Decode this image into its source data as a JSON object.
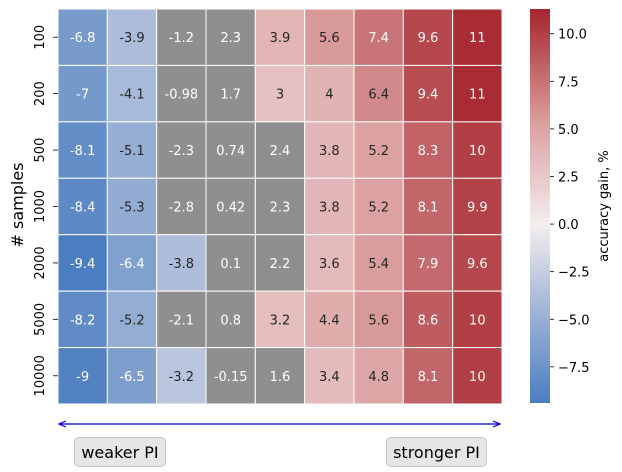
{
  "chart_data": {
    "type": "heatmap",
    "ylabel": "# samples",
    "colorbar_label": "accuracy gain, %",
    "rows": [
      "100",
      "200",
      "500",
      "1000",
      "2000",
      "5000",
      "10000"
    ],
    "columns": 9,
    "values": [
      [
        -6.8,
        -3.9,
        -1.2,
        2.3,
        3.9,
        5.6,
        7.4,
        9.6,
        11
      ],
      [
        -7,
        -4.1,
        -0.98,
        1.7,
        3,
        4,
        6.4,
        9.4,
        11
      ],
      [
        -8.1,
        -5.1,
        -2.3,
        0.74,
        2.4,
        3.8,
        5.2,
        8.3,
        10
      ],
      [
        -8.4,
        -5.3,
        -2.8,
        0.42,
        2.3,
        3.8,
        5.2,
        8.1,
        9.9
      ],
      [
        -9.4,
        -6.4,
        -3.8,
        0.1,
        2.2,
        3.6,
        5.4,
        7.9,
        9.6
      ],
      [
        -8.2,
        -5.2,
        -2.1,
        0.8,
        3.2,
        4.4,
        5.6,
        8.6,
        10
      ],
      [
        -9,
        -6.5,
        -3.2,
        -0.15,
        1.6,
        3.4,
        4.8,
        8.1,
        10
      ]
    ],
    "cell_labels": [
      [
        "-6.8",
        "-3.9",
        "-1.2",
        "2.3",
        "3.9",
        "5.6",
        "7.4",
        "9.6",
        "11"
      ],
      [
        "-7",
        "-4.1",
        "-0.98",
        "1.7",
        "3",
        "4",
        "6.4",
        "9.4",
        "11"
      ],
      [
        "-8.1",
        "-5.1",
        "-2.3",
        "0.74",
        "2.4",
        "3.8",
        "5.2",
        "8.3",
        "10"
      ],
      [
        "-8.4",
        "-5.3",
        "-2.8",
        "0.42",
        "2.3",
        "3.8",
        "5.2",
        "8.1",
        "9.9"
      ],
      [
        "-9.4",
        "-6.4",
        "-3.8",
        "0.1",
        "2.2",
        "3.6",
        "5.4",
        "7.9",
        "9.6"
      ],
      [
        "-8.2",
        "-5.2",
        "-2.1",
        "0.8",
        "3.2",
        "4.4",
        "5.6",
        "8.6",
        "10"
      ],
      [
        "-9",
        "-6.5",
        "-3.2",
        "-0.15",
        "1.6",
        "3.4",
        "4.8",
        "8.1",
        "10"
      ]
    ],
    "masked_gray_threshold": 3,
    "colormap": "vlag",
    "colorbar_range": [
      -9.4,
      11.3
    ],
    "colorbar_ticks": [
      -7.5,
      -5.0,
      -2.5,
      0.0,
      2.5,
      5.0,
      7.5,
      10.0
    ],
    "colorbar_tick_labels": [
      "−7.5",
      "−5.0",
      "−2.5",
      "0.0",
      "2.5",
      "5.0",
      "7.5",
      "10.0"
    ],
    "gray_color": "#8f8f8f",
    "colormap_stops": [
      "#4b7ec0",
      "#a6b8d8",
      "#f3eeee",
      "#dda3a3",
      "#a6252d"
    ],
    "arrow_color": "#0000cc"
  },
  "annotations": {
    "weaker_label": "weaker PI",
    "stronger_label": "stronger PI"
  }
}
